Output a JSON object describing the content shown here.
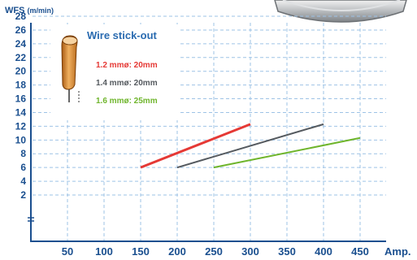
{
  "chart_data": {
    "type": "line",
    "y_axis_label": "WFS",
    "y_axis_unit": "(m/min)",
    "x_axis_unit": "Amp.",
    "x_ticks": [
      "50",
      "100",
      "150",
      "200",
      "250",
      "300",
      "350",
      "400",
      "450"
    ],
    "y_ticks": [
      "2",
      "4",
      "6",
      "8",
      "10",
      "12",
      "14",
      "16",
      "18",
      "20",
      "22",
      "24",
      "26",
      "28"
    ],
    "xlim": [
      0,
      475
    ],
    "ylim": [
      0,
      29
    ],
    "y_axis_break": true,
    "grid": true,
    "legend_title": "Wire stick-out",
    "legend_position": "top-left",
    "series": [
      {
        "name": "1.2 mmø: 20mm",
        "color": "#e53935",
        "x": [
          150,
          300
        ],
        "y": [
          6.0,
          12.3
        ]
      },
      {
        "name": "1.4 mmø: 20mm",
        "color": "#555a5f",
        "x": [
          200,
          400
        ],
        "y": [
          6.0,
          12.3
        ]
      },
      {
        "name": "1.6 mmø: 25mm",
        "color": "#6fb52c",
        "x": [
          250,
          450
        ],
        "y": [
          6.0,
          10.3
        ]
      }
    ]
  },
  "colors": {
    "axis": "#1a4f8f",
    "grid": "#9ec3e6",
    "tick_text": "#1a4f8f"
  },
  "icons": {
    "wire_tip": "welding-contact-tip-icon",
    "wire_spool": "wire-spool-icon"
  }
}
